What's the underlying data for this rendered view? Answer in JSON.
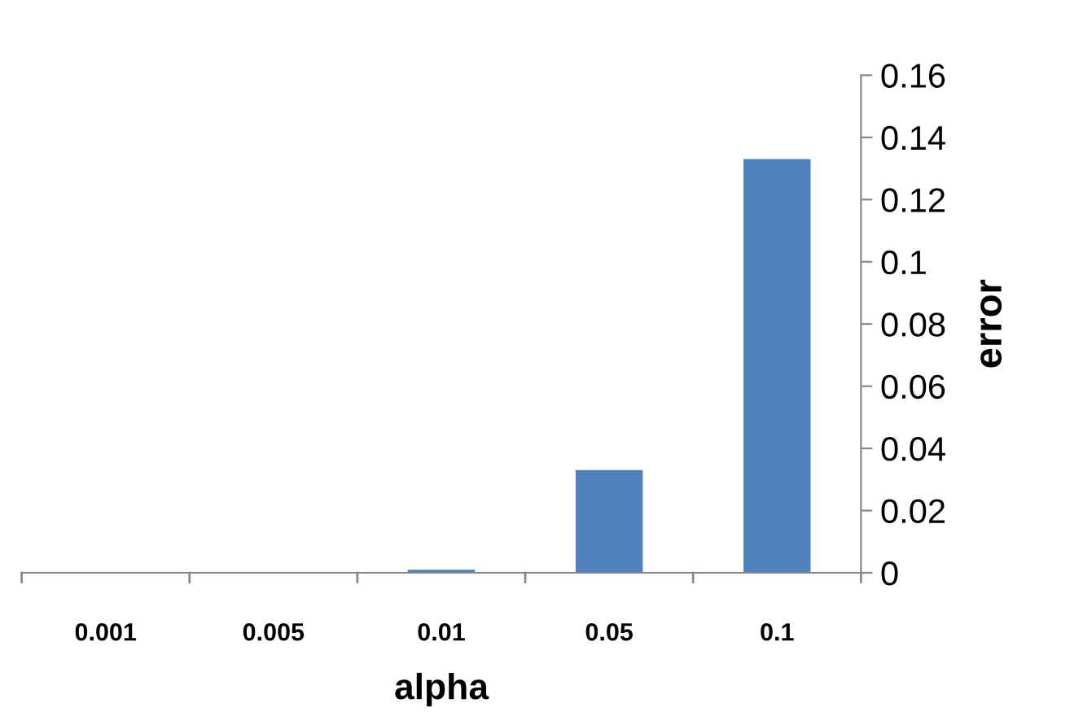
{
  "chart_data": {
    "type": "bar",
    "xlabel": "alpha",
    "ylabel": "error",
    "categories": [
      "0.001",
      "0.005",
      "0.01",
      "0.05",
      "0.1"
    ],
    "values": [
      0,
      0,
      0.001,
      0.033,
      0.133
    ],
    "color": "#4f81bd",
    "ylim": [
      0,
      0.16
    ],
    "yticks": [
      0,
      0.02,
      0.04,
      0.06,
      0.08,
      0.1,
      0.12,
      0.14,
      0.16
    ],
    "grid": false,
    "legend": false
  }
}
